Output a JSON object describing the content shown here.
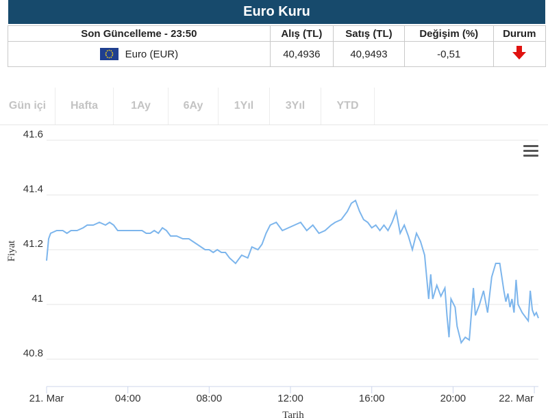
{
  "header": {
    "title": "Euro Kuru"
  },
  "table": {
    "headers": [
      "Son Güncelleme - 23:50",
      "Alış (TL)",
      "Satış (TL)",
      "Değişim (%)",
      "Durum"
    ],
    "row": {
      "name": "Euro (EUR)",
      "buy": "40,4936",
      "sell": "40,9493",
      "change": "-0,51",
      "status_icon": "arrow-down-icon"
    }
  },
  "tabs": [
    "Gün içi",
    "Hafta",
    "1Ay",
    "6Ay",
    "1Yıl",
    "3Yıl",
    "YTD"
  ],
  "colors": {
    "header_bg": "#174a6c",
    "line": "#7cb5ec",
    "arrow": "#e0120f",
    "flag": "#1f3f8f"
  },
  "chart_data": {
    "type": "line",
    "xlabel": "Tarih",
    "ylabel": "Fiyat",
    "ylim": [
      40.7,
      41.65
    ],
    "yticks": [
      40.8,
      41,
      41.2,
      41.4,
      41.6
    ],
    "ytick_labels": [
      "40.8",
      "41",
      "41.2",
      "41.4",
      "41.6"
    ],
    "xlim": [
      0,
      24.2
    ],
    "xticks": [
      0,
      4,
      8,
      12,
      16,
      20,
      24
    ],
    "xtick_labels": [
      "21. Mar",
      "04:00",
      "08:00",
      "12:00",
      "16:00",
      "20:00",
      "22. Mar"
    ],
    "grid": true,
    "series": [
      {
        "points": [
          [
            0.0,
            41.16
          ],
          [
            0.1,
            41.24
          ],
          [
            0.2,
            41.26
          ],
          [
            0.5,
            41.27
          ],
          [
            0.8,
            41.27
          ],
          [
            1.0,
            41.26
          ],
          [
            1.2,
            41.27
          ],
          [
            1.5,
            41.27
          ],
          [
            1.8,
            41.28
          ],
          [
            2.0,
            41.29
          ],
          [
            2.3,
            41.29
          ],
          [
            2.6,
            41.3
          ],
          [
            2.9,
            41.29
          ],
          [
            3.1,
            41.3
          ],
          [
            3.3,
            41.29
          ],
          [
            3.5,
            41.27
          ],
          [
            3.8,
            41.27
          ],
          [
            4.1,
            41.27
          ],
          [
            4.4,
            41.27
          ],
          [
            4.7,
            41.27
          ],
          [
            4.9,
            41.26
          ],
          [
            5.1,
            41.26
          ],
          [
            5.3,
            41.27
          ],
          [
            5.5,
            41.26
          ],
          [
            5.7,
            41.28
          ],
          [
            5.9,
            41.27
          ],
          [
            6.1,
            41.25
          ],
          [
            6.4,
            41.25
          ],
          [
            6.7,
            41.24
          ],
          [
            7.0,
            41.24
          ],
          [
            7.2,
            41.23
          ],
          [
            7.4,
            41.22
          ],
          [
            7.6,
            41.21
          ],
          [
            7.8,
            41.2
          ],
          [
            8.0,
            41.2
          ],
          [
            8.2,
            41.19
          ],
          [
            8.4,
            41.2
          ],
          [
            8.6,
            41.19
          ],
          [
            8.8,
            41.19
          ],
          [
            9.0,
            41.17
          ],
          [
            9.3,
            41.15
          ],
          [
            9.6,
            41.18
          ],
          [
            9.9,
            41.17
          ],
          [
            10.1,
            41.21
          ],
          [
            10.4,
            41.2
          ],
          [
            10.6,
            41.22
          ],
          [
            10.8,
            41.26
          ],
          [
            11.0,
            41.29
          ],
          [
            11.3,
            41.3
          ],
          [
            11.6,
            41.27
          ],
          [
            11.9,
            41.28
          ],
          [
            12.2,
            41.29
          ],
          [
            12.5,
            41.3
          ],
          [
            12.8,
            41.27
          ],
          [
            13.1,
            41.29
          ],
          [
            13.4,
            41.26
          ],
          [
            13.7,
            41.27
          ],
          [
            14.0,
            41.29
          ],
          [
            14.2,
            41.3
          ],
          [
            14.5,
            41.31
          ],
          [
            14.8,
            41.34
          ],
          [
            15.0,
            41.37
          ],
          [
            15.2,
            41.38
          ],
          [
            15.4,
            41.34
          ],
          [
            15.6,
            41.31
          ],
          [
            15.8,
            41.3
          ],
          [
            16.0,
            41.28
          ],
          [
            16.2,
            41.29
          ],
          [
            16.4,
            41.27
          ],
          [
            16.6,
            41.29
          ],
          [
            16.8,
            41.27
          ],
          [
            17.0,
            41.3
          ],
          [
            17.2,
            41.34
          ],
          [
            17.4,
            41.26
          ],
          [
            17.6,
            41.29
          ],
          [
            17.8,
            41.25
          ],
          [
            18.0,
            41.2
          ],
          [
            18.2,
            41.26
          ],
          [
            18.4,
            41.23
          ],
          [
            18.6,
            41.18
          ],
          [
            18.8,
            41.02
          ],
          [
            18.9,
            41.11
          ],
          [
            19.0,
            41.02
          ],
          [
            19.2,
            41.07
          ],
          [
            19.4,
            41.03
          ],
          [
            19.6,
            41.06
          ],
          [
            19.7,
            40.96
          ],
          [
            19.8,
            40.88
          ],
          [
            19.9,
            41.02
          ],
          [
            20.1,
            40.99
          ],
          [
            20.2,
            40.92
          ],
          [
            20.4,
            40.86
          ],
          [
            20.6,
            40.88
          ],
          [
            20.8,
            40.87
          ],
          [
            21.0,
            41.06
          ],
          [
            21.1,
            40.96
          ],
          [
            21.3,
            41.0
          ],
          [
            21.5,
            41.05
          ],
          [
            21.7,
            40.97
          ],
          [
            21.9,
            41.1
          ],
          [
            22.1,
            41.15
          ],
          [
            22.3,
            41.15
          ],
          [
            22.5,
            41.05
          ],
          [
            22.6,
            41.01
          ],
          [
            22.7,
            41.04
          ],
          [
            22.8,
            40.99
          ],
          [
            22.9,
            41.02
          ],
          [
            23.0,
            40.97
          ],
          [
            23.1,
            41.09
          ],
          [
            23.2,
            41.0
          ],
          [
            23.4,
            40.97
          ],
          [
            23.6,
            40.95
          ],
          [
            23.7,
            40.94
          ],
          [
            23.8,
            41.05
          ],
          [
            23.9,
            40.98
          ],
          [
            24.0,
            40.96
          ],
          [
            24.1,
            40.97
          ],
          [
            24.2,
            40.95
          ]
        ]
      }
    ]
  }
}
